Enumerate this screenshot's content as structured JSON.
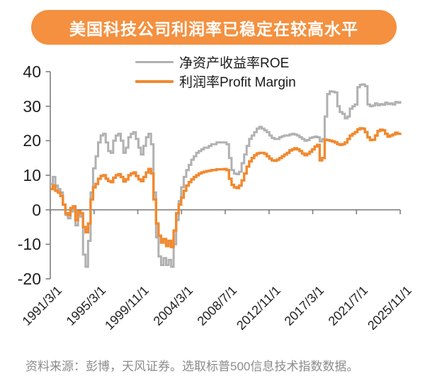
{
  "banner": {
    "title": "美国科技公司利润率已稳定在较高水平",
    "bg_color": "#F4903F",
    "text_color": "#FFFFFF"
  },
  "footer": {
    "source_note": "资料来源：彭博，天风证券。选取标普500信息技术指数数据。"
  },
  "chart_data": {
    "type": "line",
    "title": "美国科技公司利润率已稳定在较高水平",
    "line_style": "step",
    "grid": false,
    "legend_position": "top-center",
    "x_axis": {
      "start": "1991/3/1",
      "end": "2025/11/1",
      "frequency": "quarterly",
      "tick_labels": [
        "1991/3/1",
        "1995/3/1",
        "1999/11/1",
        "2004/3/1",
        "2008/7/1",
        "2012/11/1",
        "2017/3/1",
        "2021/7/1",
        "2025/11/1"
      ]
    },
    "y_axis": {
      "ylim": [
        -20,
        40
      ],
      "tick_step": 10,
      "tick_labels": [
        "40",
        "30",
        "20",
        "10",
        "0",
        "-10",
        "-20"
      ]
    },
    "axis_color": "#7F7F7F",
    "series": [
      {
        "name": "净资产收益率ROE",
        "color": "#B1B1B1",
        "stroke_width": 3,
        "values": [
          7.5,
          9.5,
          7,
          6,
          5,
          1.5,
          -1.5,
          -2.5,
          -0.5,
          1,
          -4.5,
          -1.5,
          -2,
          -13,
          -16.5,
          -9,
          5,
          12,
          15.5,
          19.5,
          21.5,
          22,
          19.5,
          17,
          16.5,
          20,
          21.5,
          22,
          20,
          16.5,
          18,
          21,
          22,
          22.5,
          20.5,
          18,
          16,
          18.5,
          21,
          22,
          19,
          5,
          -8,
          -13.5,
          -16,
          -14,
          -16,
          -14.5,
          -16.5,
          -10,
          -3,
          2.5,
          6.5,
          9.5,
          11.5,
          13,
          14.5,
          15.5,
          16.5,
          17,
          17.5,
          18,
          18,
          18.5,
          19,
          19,
          19.5,
          19.5,
          19.5,
          19.5,
          19,
          15,
          11.5,
          10.5,
          10.3,
          11,
          13.5,
          16,
          18.5,
          20.5,
          21.5,
          22.5,
          23.5,
          24,
          23.5,
          23,
          22.5,
          21.5,
          20.8,
          20.5,
          20.5,
          21,
          21.3,
          21.5,
          21.5,
          21.8,
          22,
          21.8,
          21.5,
          21,
          20.5,
          20,
          20.2,
          20.8,
          21,
          21.2,
          21,
          19.8,
          20.5,
          27,
          33.5,
          34.3,
          34.2,
          34,
          30,
          28.3,
          27.8,
          26.5,
          27,
          29.3,
          30,
          30.5,
          35.5,
          36.2,
          36.3,
          35.8,
          30.5,
          30,
          30.2,
          30.8,
          30.3,
          30.6,
          30.4,
          31,
          30.6,
          30.8,
          30.5,
          31.2,
          31,
          31.5
        ]
      },
      {
        "name": "利润率Profit Margin",
        "color": "#F0892F",
        "stroke_width": 3.4,
        "values": [
          6,
          7,
          5.5,
          5,
          4,
          1.5,
          -1,
          -1.5,
          0.5,
          1,
          -3,
          -0.5,
          -1,
          -5,
          -6.5,
          -4,
          3,
          6.5,
          7.5,
          9,
          9.8,
          10,
          9,
          8.3,
          8,
          9.3,
          10,
          10.3,
          9.5,
          8.2,
          8.8,
          10,
          10.5,
          10.8,
          9.8,
          8.8,
          8.3,
          9.5,
          10.8,
          11.8,
          10.5,
          3,
          -4,
          -7.5,
          -9.5,
          -8.5,
          -10.5,
          -9,
          -10.8,
          -6,
          -1,
          1.5,
          3.5,
          5.5,
          7,
          8,
          8.8,
          9.5,
          10,
          10.5,
          10.8,
          11,
          11.2,
          11.3,
          11.5,
          11.5,
          11.7,
          11.7,
          11.7,
          11.8,
          11.5,
          9,
          7.2,
          6.5,
          6.3,
          7,
          8.5,
          10.5,
          12.5,
          14,
          15,
          15.8,
          16.3,
          16.5,
          16.5,
          16.2,
          15.5,
          14.8,
          14.3,
          14.2,
          14.5,
          15,
          15.5,
          16,
          16.5,
          17.2,
          17.5,
          17.8,
          17.5,
          17,
          16.3,
          15.8,
          16.2,
          16.8,
          17.5,
          18.3,
          18.8,
          14.3,
          15,
          20.3,
          20.2,
          20,
          19.8,
          19.5,
          19,
          18.8,
          19,
          19.5,
          20.5,
          21.5,
          22,
          22.5,
          23.3,
          23.6,
          23.5,
          22.5,
          21,
          20.2,
          20.3,
          21.5,
          22.8,
          23.2,
          23,
          22,
          21.2,
          21.5,
          21.8,
          22.3,
          22,
          22.3
        ]
      }
    ],
    "source_note": "资料来源：彭博，天风证券。选取标普500信息技术指数数据。"
  }
}
